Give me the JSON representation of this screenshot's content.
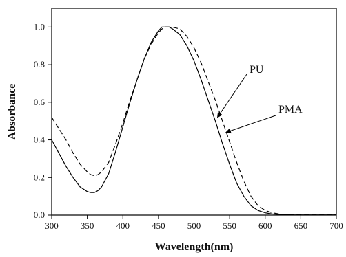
{
  "chart_data": {
    "type": "line",
    "title": "",
    "xlabel": "Wavelength(nm)",
    "ylabel": "Absorbance",
    "xlim": [
      300,
      700
    ],
    "ylim": [
      0.0,
      1.1
    ],
    "xticks": [
      300,
      350,
      400,
      450,
      500,
      550,
      600,
      650,
      700
    ],
    "yticks": [
      "0.0",
      "0.2",
      "0.4",
      "0.6",
      "0.8",
      "1.0"
    ],
    "grid": false,
    "legend": "none",
    "series": [
      {
        "name": "PU",
        "style": "solid",
        "color": "#000000",
        "x": [
          300,
          310,
          320,
          330,
          340,
          350,
          355,
          360,
          365,
          370,
          380,
          390,
          400,
          410,
          420,
          430,
          440,
          450,
          455,
          460,
          465,
          470,
          480,
          490,
          500,
          510,
          520,
          530,
          540,
          550,
          560,
          570,
          580,
          590,
          600,
          610,
          620,
          630,
          640,
          650,
          700
        ],
        "y": [
          0.4,
          0.33,
          0.26,
          0.2,
          0.15,
          0.125,
          0.12,
          0.12,
          0.13,
          0.15,
          0.22,
          0.34,
          0.47,
          0.6,
          0.72,
          0.83,
          0.92,
          0.98,
          1.0,
          1.0,
          1.0,
          0.99,
          0.96,
          0.9,
          0.82,
          0.72,
          0.61,
          0.5,
          0.38,
          0.27,
          0.17,
          0.1,
          0.05,
          0.025,
          0.012,
          0.006,
          0.003,
          0.002,
          0.001,
          0.001,
          0.001
        ]
      },
      {
        "name": "PMA",
        "style": "dashed",
        "color": "#000000",
        "x": [
          300,
          310,
          320,
          330,
          340,
          350,
          355,
          360,
          365,
          370,
          380,
          390,
          400,
          410,
          420,
          430,
          440,
          450,
          455,
          460,
          465,
          470,
          480,
          490,
          500,
          510,
          520,
          530,
          540,
          550,
          560,
          570,
          580,
          590,
          600,
          610,
          620,
          630,
          640,
          650,
          700
        ],
        "y": [
          0.52,
          0.46,
          0.4,
          0.33,
          0.27,
          0.23,
          0.215,
          0.21,
          0.215,
          0.23,
          0.28,
          0.38,
          0.49,
          0.61,
          0.72,
          0.83,
          0.91,
          0.97,
          0.99,
          1.0,
          1.0,
          1.0,
          0.99,
          0.95,
          0.89,
          0.81,
          0.71,
          0.61,
          0.5,
          0.39,
          0.28,
          0.18,
          0.1,
          0.05,
          0.025,
          0.012,
          0.006,
          0.003,
          0.002,
          0.001,
          0.001
        ]
      }
    ],
    "annotations": [
      {
        "text": "PU",
        "series": "PU",
        "arrow_to": [
          533,
          0.52
        ]
      },
      {
        "text": "PMA",
        "series": "PMA",
        "arrow_to": [
          545,
          0.44
        ]
      }
    ]
  }
}
